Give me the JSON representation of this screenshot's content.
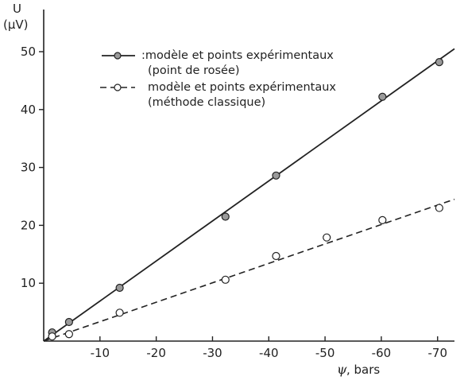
{
  "chart_data": {
    "type": "line",
    "xlabel_symbol": "ψ",
    "xlabel_unit": ", bars",
    "ylabel_line1": "U",
    "ylabel_line2": "(µV)",
    "xlim": [
      0,
      -73
    ],
    "ylim": [
      0,
      52
    ],
    "x_ticks": [
      -10,
      -20,
      -30,
      -40,
      -50,
      -60,
      -70
    ],
    "x_tick_labels": [
      "-10",
      "-20",
      "-30",
      "-40",
      "-50",
      "-60",
      "-70"
    ],
    "y_ticks": [
      10,
      20,
      30,
      40,
      50
    ],
    "y_tick_labels": [
      "10",
      "20",
      "30",
      "40",
      "50"
    ],
    "series": [
      {
        "name": ":modèle et points expérimentaux (point de rosée)",
        "legend_line1": ":modèle et points expérimentaux",
        "legend_line2": "(point de rosée)",
        "style": "solid",
        "marker": "filled-circle",
        "model_line": {
          "x": [
            0,
            -73
          ],
          "y": [
            0,
            50.5
          ]
        },
        "points": [
          {
            "x": -1.5,
            "y": 1.5
          },
          {
            "x": -4.5,
            "y": 3.3
          },
          {
            "x": -13.5,
            "y": 9.2
          },
          {
            "x": -32.3,
            "y": 21.5
          },
          {
            "x": -41.3,
            "y": 28.6
          },
          {
            "x": -60.2,
            "y": 42.2
          },
          {
            "x": -70.3,
            "y": 48.2
          }
        ]
      },
      {
        "name": "modèle et points expérimentaux (méthode classique)",
        "legend_line1": "modèle et points expérimentaux",
        "legend_line2": "(méthode classique)",
        "style": "dashed",
        "marker": "open-circle",
        "model_line": {
          "x": [
            0,
            -73
          ],
          "y": [
            0,
            24.5
          ]
        },
        "points": [
          {
            "x": -1.5,
            "y": 0.8
          },
          {
            "x": -4.5,
            "y": 1.2
          },
          {
            "x": -13.5,
            "y": 4.9
          },
          {
            "x": -32.3,
            "y": 10.6
          },
          {
            "x": -41.3,
            "y": 14.7
          },
          {
            "x": -50.3,
            "y": 17.9
          },
          {
            "x": -60.2,
            "y": 20.9
          },
          {
            "x": -70.3,
            "y": 23.0
          }
        ]
      }
    ]
  }
}
